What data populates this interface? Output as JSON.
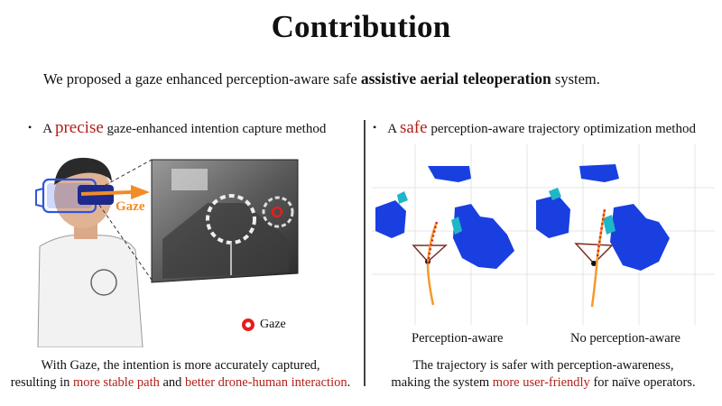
{
  "title": "Contribution",
  "subtitle": {
    "prefix": "We proposed a gaze enhanced perception-aware safe ",
    "bold": "assistive aerial teleoperation",
    "suffix": " system."
  },
  "left": {
    "bullet_pre": "A ",
    "bullet_key": "precise",
    "bullet_post": " gaze-enhanced intention capture method",
    "gaze_arrow_label": "Gaze",
    "legend_label": "Gaze",
    "caption_line1": "With Gaze, the intention is more accurately captured,",
    "caption_line2_pre": "resulting in ",
    "caption_line2_red1": "more stable path",
    "caption_line2_mid": " and ",
    "caption_line2_red2": "better drone-human interaction",
    "caption_line2_post": "."
  },
  "right": {
    "bullet_pre": "A ",
    "bullet_key": "safe",
    "bullet_post": " perception-aware trajectory optimization method",
    "label_perception": "Perception-aware",
    "label_no_perception": "No perception-aware",
    "caption_line1": "The trajectory is safer with perception-awareness,",
    "caption_line2_pre": "making the system ",
    "caption_line2_red": "more user-friendly",
    "caption_line2_post": " for naïve operators."
  },
  "colors": {
    "accent_red": "#b32019",
    "gaze_orange": "#f28c28",
    "obstacle_blue": "#1a3fe0",
    "obstacle_cyan": "#1fb6c9",
    "trajectory_orange": "#f39a2b",
    "trajectory_red": "#d9281e"
  }
}
